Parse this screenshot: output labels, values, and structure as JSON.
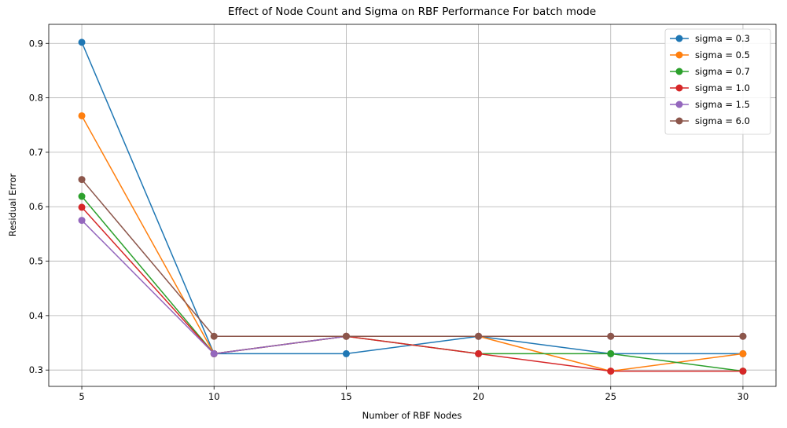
{
  "chart_data": {
    "type": "line",
    "title": "Effect of Node Count and Sigma on RBF Performance For batch mode",
    "xlabel": "Number of RBF Nodes",
    "ylabel": "Residual Error",
    "x": [
      5,
      10,
      15,
      20,
      25,
      30
    ],
    "xticks": [
      "5",
      "10",
      "15",
      "20",
      "25",
      "30"
    ],
    "yticks": [
      "0.3",
      "0.4",
      "0.5",
      "0.6",
      "0.7",
      "0.8",
      "0.9"
    ],
    "xlim": [
      3.75,
      31.25
    ],
    "ylim": [
      0.27,
      0.935
    ],
    "grid": true,
    "legend_position": "top-right",
    "series": [
      {
        "name": "sigma = 0.3",
        "color": "#1f77b4",
        "values": [
          0.902,
          0.33,
          0.33,
          0.362,
          0.33,
          0.33
        ]
      },
      {
        "name": "sigma = 0.5",
        "color": "#ff7f0e",
        "values": [
          0.767,
          0.33,
          0.362,
          0.362,
          0.298,
          0.33
        ]
      },
      {
        "name": "sigma = 0.7",
        "color": "#2ca02c",
        "values": [
          0.619,
          0.33,
          0.362,
          0.33,
          0.33,
          0.298
        ]
      },
      {
        "name": "sigma = 1.0",
        "color": "#d62728",
        "values": [
          0.599,
          0.33,
          0.362,
          0.33,
          0.298,
          0.298
        ]
      },
      {
        "name": "sigma = 1.5",
        "color": "#9467bd",
        "values": [
          0.575,
          0.33,
          0.362,
          0.362,
          0.362,
          0.362
        ]
      },
      {
        "name": "sigma = 6.0",
        "color": "#8c564b",
        "values": [
          0.65,
          0.362,
          0.362,
          0.362,
          0.362,
          0.362
        ]
      }
    ]
  }
}
